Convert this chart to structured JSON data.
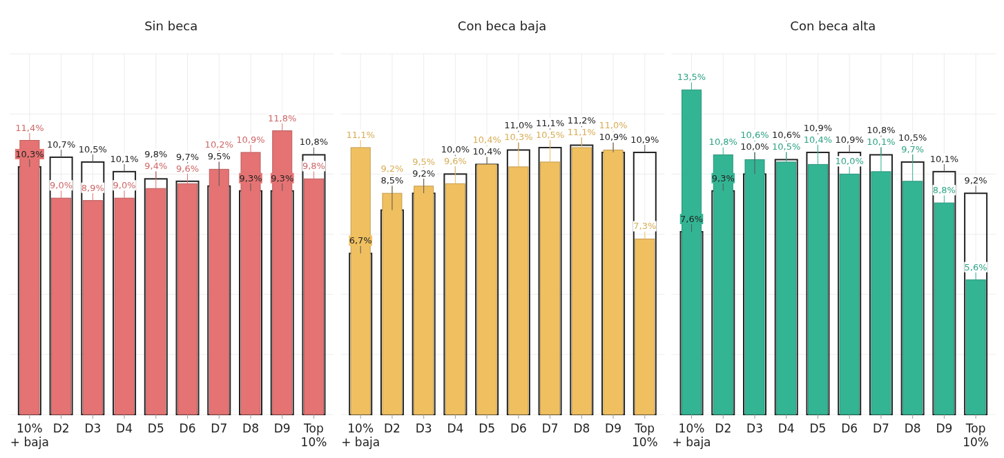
{
  "chart_data": [
    {
      "type": "bar",
      "title": "Sin beca",
      "categories": [
        "10%\n+ baja",
        "D2",
        "D3",
        "D4",
        "D5",
        "D6",
        "D7",
        "D8",
        "D9",
        "Top\n10%"
      ],
      "series": [
        {
          "color": "#e57373",
          "values": [
            11.4,
            9.0,
            8.9,
            9.0,
            9.4,
            9.6,
            10.2,
            10.9,
            11.8,
            9.8
          ],
          "value_labels": [
            "11,4%",
            "9,0%",
            "8,9%",
            "9,0%",
            "9,4%",
            "9,6%",
            "10,2%",
            "10,9%",
            "11,8%",
            "9,8%"
          ]
        },
        {
          "type": "bar",
          "color": "#222222",
          "values": [
            10.3,
            10.7,
            10.5,
            10.1,
            9.8,
            9.7,
            9.5,
            9.3,
            9.3,
            10.8
          ],
          "value_labels": [
            "10,3%",
            "10,7%",
            "10,5%",
            "10,1%",
            "9,8%",
            "9,7%",
            "9,5%",
            "9,3%",
            "9,3%",
            "10,8%"
          ]
        }
      ],
      "ylim": [
        0,
        15
      ],
      "yticks": [
        0,
        2.5,
        5,
        7.5,
        10,
        12.5,
        15
      ],
      "grid": true,
      "tick_labels": "x"
    },
    {
      "type": "bar",
      "title": "Con beca baja",
      "categories": [
        "10%\n+ baja",
        "D2",
        "D3",
        "D4",
        "D5",
        "D6",
        "D7",
        "D8",
        "D9",
        "Top\n10%"
      ],
      "series": [
        {
          "color": "#f0c060",
          "values": [
            11.1,
            9.2,
            9.5,
            9.6,
            10.4,
            10.3,
            10.5,
            11.1,
            11.0,
            7.3
          ],
          "value_labels": [
            "11,1%",
            "9,2%",
            "9,5%",
            "9,6%",
            "10,4%",
            "10,3%",
            "10,5%",
            "11,1%",
            "11,0%",
            "7,3%"
          ]
        },
        {
          "type": "bar",
          "color": "#222222",
          "values": [
            6.7,
            8.5,
            9.2,
            10.0,
            10.4,
            11.0,
            11.1,
            11.2,
            10.9,
            10.9
          ],
          "value_labels": [
            "6,7%",
            "8,5%",
            "9,2%",
            "10,0%",
            "10,4%",
            "11,0%",
            "11,1%",
            "11,2%",
            "10,9%",
            "10,9%"
          ]
        }
      ],
      "ylim": [
        0,
        15
      ],
      "yticks": [
        0,
        2.5,
        5,
        7.5,
        10,
        12.5,
        15
      ],
      "grid": true,
      "tick_labels": "x"
    },
    {
      "type": "bar",
      "title": "Con beca alta",
      "categories": [
        "10%\n+ baja",
        "D2",
        "D3",
        "D4",
        "D5",
        "D6",
        "D7",
        "D8",
        "D9",
        "Top\n10%"
      ],
      "series": [
        {
          "color": "#33b594",
          "values": [
            13.5,
            10.8,
            10.6,
            10.5,
            10.4,
            10.0,
            10.1,
            9.7,
            8.8,
            5.6
          ],
          "value_labels": [
            "13,5%",
            "10,8%",
            "10,6%",
            "10,5%",
            "10,4%",
            "10,0%",
            "10,1%",
            "9,7%",
            "8,8%",
            "5,6%"
          ]
        },
        {
          "type": "bar",
          "color": "#222222",
          "values": [
            7.6,
            9.3,
            10.0,
            10.6,
            10.9,
            10.9,
            10.8,
            10.5,
            10.1,
            9.2
          ],
          "value_labels": [
            "7,6%",
            "9,3%",
            "10,0%",
            "10,6%",
            "10,9%",
            "10,9%",
            "10,8%",
            "10,5%",
            "10,1%",
            "9,2%"
          ]
        }
      ],
      "ylim": [
        0,
        15
      ],
      "yticks": [
        0,
        2.5,
        5,
        7.5,
        10,
        12.5,
        15
      ],
      "grid": true,
      "tick_labels": "x"
    }
  ]
}
